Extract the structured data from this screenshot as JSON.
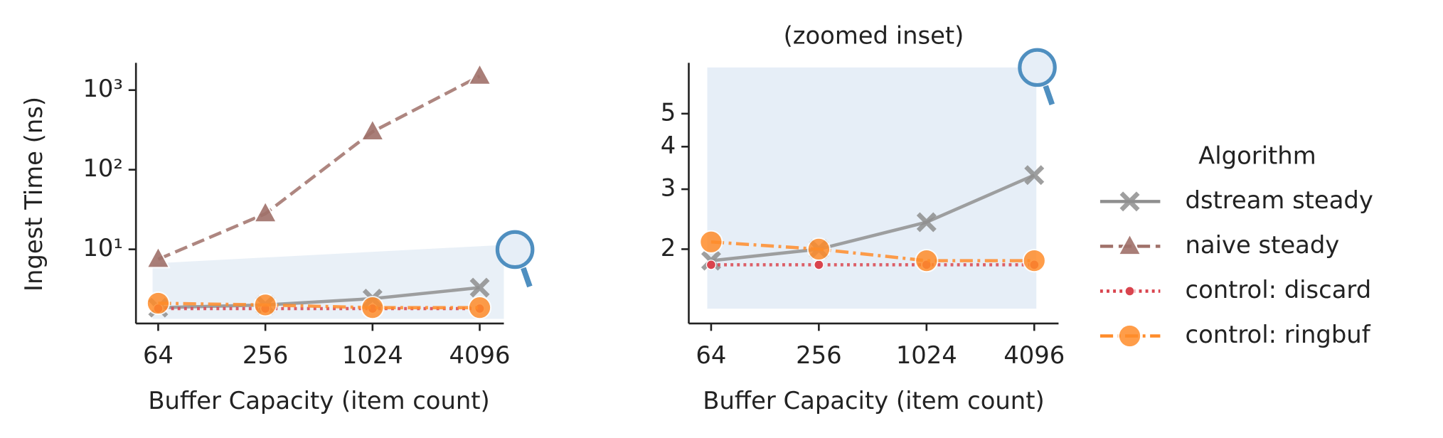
{
  "chart_data": [
    {
      "type": "line",
      "xlabel": "Buffer Capacity (item count)",
      "ylabel": "Ingest Time (ns)",
      "x": [
        64,
        256,
        1024,
        4096
      ],
      "xscale": "log",
      "yscale": "log",
      "xlim": [
        48,
        5600
      ],
      "ylim": [
        1.17,
        2200
      ],
      "xticks": [
        64,
        256,
        1024,
        4096
      ],
      "yticks": [
        {
          "value": 10,
          "label": "10¹"
        },
        {
          "value": 100,
          "label": "10²"
        },
        {
          "value": 1000,
          "label": "10³"
        }
      ],
      "legend_title": "Algorithm",
      "legend": "right",
      "series": [
        {
          "name": "dstream steady",
          "color": "#8f8f8f",
          "dash": "solid",
          "marker": "x",
          "values": [
            1.85,
            2.0,
            2.4,
            3.3
          ]
        },
        {
          "name": "naive steady",
          "color": "#a0716a",
          "dash": "dashed",
          "marker": "triangle",
          "values": [
            7.5,
            28,
            300,
            1500
          ]
        },
        {
          "name": "control: discard",
          "color": "#d9444e",
          "dash": "dotted",
          "marker": "dot",
          "values": [
            1.8,
            1.8,
            1.8,
            1.8
          ]
        },
        {
          "name": "control: ringbuf",
          "color": "#ff8c2a",
          "dash": "dashdot",
          "marker": "circle",
          "values": [
            2.1,
            2.0,
            1.85,
            1.85
          ]
        }
      ]
    },
    {
      "type": "line",
      "title": "(zoomed inset)",
      "xlabel": "Buffer Capacity (item count)",
      "x": [
        64,
        256,
        1024,
        4096
      ],
      "xscale": "log",
      "yscale": "log",
      "xlim": [
        48,
        5600
      ],
      "ylim": [
        1.21,
        7.05
      ],
      "xticks": [
        64,
        256,
        1024,
        4096
      ],
      "yticks": [
        2,
        3,
        4,
        5
      ],
      "series": [
        {
          "color": "#8f8f8f",
          "dash": "solid",
          "marker": "x",
          "values": [
            1.85,
            2.0,
            2.4,
            3.3
          ]
        },
        {
          "color": "#d9444e",
          "dash": "dotted",
          "marker": "dot",
          "values": [
            1.8,
            1.8,
            1.8,
            1.8
          ]
        },
        {
          "color": "#ff8c2a",
          "dash": "dashdot",
          "marker": "circle",
          "values": [
            2.1,
            2.0,
            1.85,
            1.85
          ]
        }
      ]
    }
  ]
}
